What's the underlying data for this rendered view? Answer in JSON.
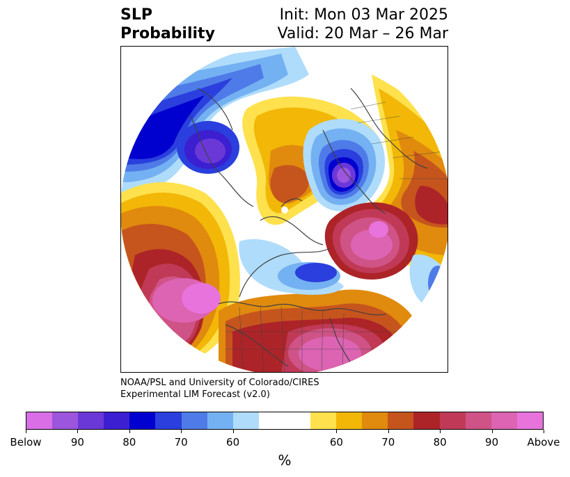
{
  "title": {
    "left_line1": "SLP",
    "left_line2": "Probability",
    "right_line1": "Init: Mon 03 Mar 2025",
    "right_line2": "Valid: 20 Mar – 26 Mar"
  },
  "credit": {
    "line1": "NOAA/PSL and University of Colorado/CIRES",
    "line2": "Experimental LIM Forecast (v2.0)"
  },
  "colorbar": {
    "colors": [
      "#d96ee6",
      "#9c55dd",
      "#6b38d8",
      "#3b1fd1",
      "#0000cf",
      "#2a3fdd",
      "#4f7be8",
      "#74b1f2",
      "#afdcfb",
      "#ffffff",
      "#ffffff",
      "#ffe14d",
      "#f2b707",
      "#e08a0e",
      "#c6551d",
      "#ad2428",
      "#c03a57",
      "#cf5386",
      "#dc64b3",
      "#e873dc"
    ],
    "labels": [
      "Below",
      "90",
      "80",
      "70",
      "60",
      "60",
      "70",
      "80",
      "90",
      "Above"
    ],
    "unit": "%"
  },
  "map": {
    "projection": "north-polar-stereographic",
    "contour_colors": {
      "above_high": "#e873dc",
      "above_90": "#dc64b3",
      "above_80": "#cf5386",
      "above_70": "#ad2428",
      "above_65": "#c6551d",
      "above_60": "#e08a0e",
      "above_55": "#f2b707",
      "above_50": "#ffe14d",
      "below_55": "#afdcfb",
      "below_60": "#74b1f2",
      "below_65": "#4f7be8",
      "below_70": "#2a3fdd",
      "below_80": "#0000cf",
      "below_90": "#3b1fd1",
      "below_high": "#6b38d8"
    }
  }
}
